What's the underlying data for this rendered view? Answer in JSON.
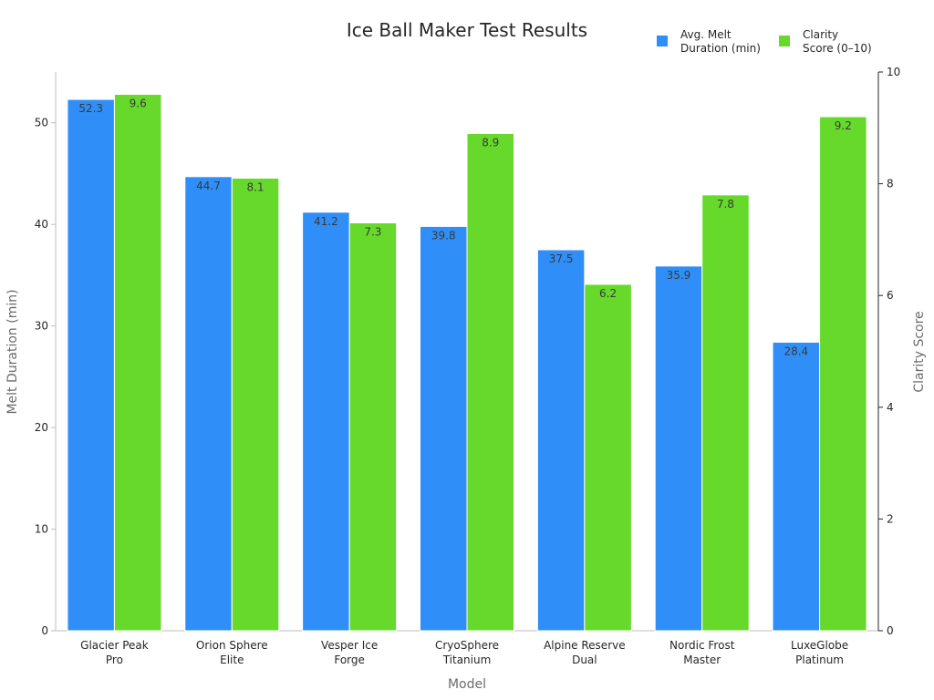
{
  "chart_data": {
    "type": "bar",
    "title": "Ice Ball Maker Test Results",
    "xlabel": "Model",
    "ylabel": "Melt Duration (min)",
    "y2label": "Clarity Score",
    "categories": [
      [
        "Glacier Peak",
        "Pro"
      ],
      [
        "Orion Sphere",
        "Elite"
      ],
      [
        "Vesper Ice",
        "Forge"
      ],
      [
        "CryoSphere",
        "Titanium"
      ],
      [
        "Alpine Reserve",
        "Dual"
      ],
      [
        "Nordic Frost",
        "Master"
      ],
      [
        "LuxeGlobe",
        "Platinum"
      ]
    ],
    "ylim": [
      0,
      55
    ],
    "y2lim": [
      0,
      10
    ],
    "yticks": [
      0,
      10,
      20,
      30,
      40,
      50
    ],
    "y2ticks": [
      0,
      2,
      4,
      6,
      8,
      10
    ],
    "legend_position": "top-right",
    "grid": false,
    "series": [
      {
        "name_lines": [
          "Avg. Melt",
          "Duration (min)"
        ],
        "axis": "left",
        "color": "#2f8ef7",
        "values": [
          52.3,
          44.7,
          41.2,
          39.8,
          37.5,
          35.9,
          28.4
        ]
      },
      {
        "name_lines": [
          "Clarity",
          "Score (0–10)"
        ],
        "axis": "right",
        "color": "#66d92a",
        "values": [
          9.6,
          8.1,
          7.3,
          8.9,
          6.2,
          7.8,
          9.2
        ]
      }
    ]
  }
}
